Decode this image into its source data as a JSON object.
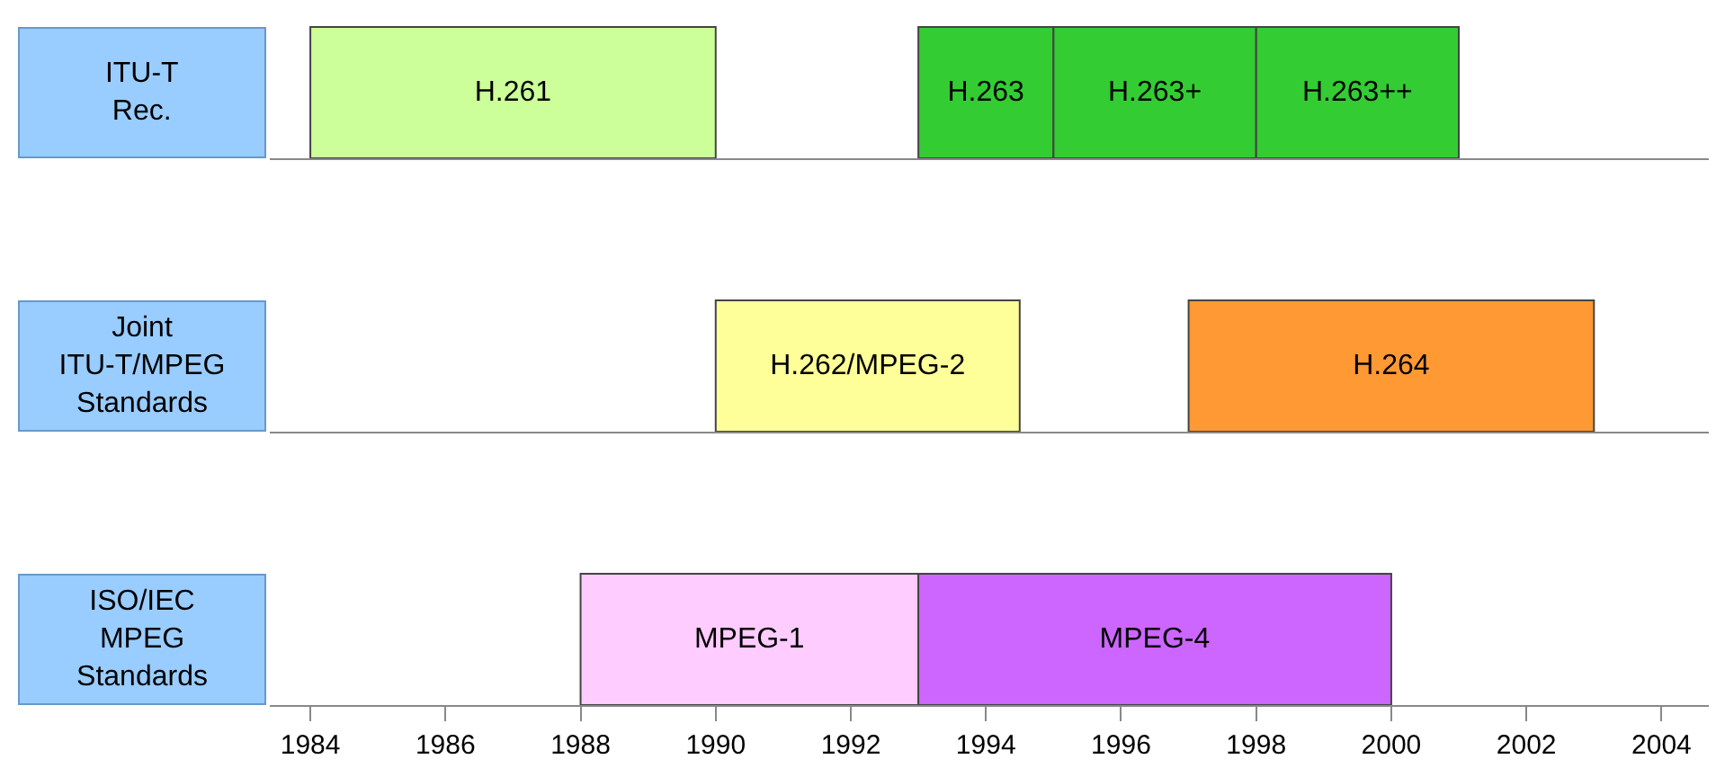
{
  "chart_data": [
    {
      "type": "bar",
      "orientation": "horizontal",
      "categories": [
        "ITU-T\nRec."
      ],
      "xlim": [
        1983.4,
        2004.7
      ],
      "tick_labels": "y",
      "legend": false,
      "series": [
        {
          "name": "H.261",
          "color": "#ccff99",
          "base": [
            1984
          ],
          "values": [
            6
          ]
        },
        {
          "name": "H.263",
          "color": "#33cc33",
          "base": [
            1993
          ],
          "values": [
            2
          ]
        },
        {
          "name": "H.263+",
          "color": "#33cc33",
          "base": [
            1995
          ],
          "values": [
            3
          ]
        },
        {
          "name": "H.263++",
          "color": "#33cc33",
          "base": [
            1998
          ],
          "values": [
            3
          ]
        }
      ]
    },
    {
      "type": "bar",
      "orientation": "horizontal",
      "categories": [
        "Joint\nITU-T/MPEG\nStandards"
      ],
      "xlim": [
        1983.4,
        2004.7
      ],
      "tick_labels": "y",
      "legend": false,
      "series": [
        {
          "name": "H.262/MPEG-2",
          "color": "#ffff99",
          "base": [
            1990
          ],
          "values": [
            4.5
          ]
        },
        {
          "name": "H.264",
          "color": "#ff9933",
          "base": [
            1997
          ],
          "values": [
            6
          ]
        }
      ]
    },
    {
      "type": "bar",
      "orientation": "horizontal",
      "categories": [
        "ISO/IEC\nMPEG\nStandards"
      ],
      "xlim": [
        1983.4,
        2004.7
      ],
      "xticks": [
        1984,
        1986,
        1988,
        1990,
        1992,
        1994,
        1996,
        1998,
        2000,
        2002,
        2004
      ],
      "legend": false,
      "series": [
        {
          "name": "MPEG-1",
          "color": "#ffccff",
          "base": [
            1988
          ],
          "values": [
            5
          ]
        },
        {
          "name": "MPEG-4",
          "color": "#cc66ff",
          "base": [
            1993
          ],
          "values": [
            7
          ]
        }
      ]
    }
  ]
}
